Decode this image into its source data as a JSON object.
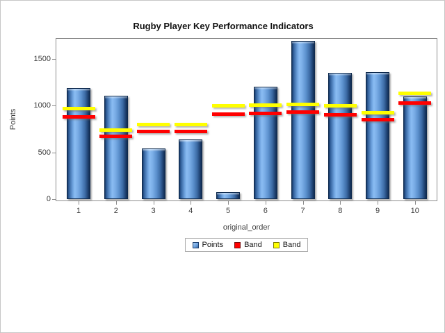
{
  "title": "Rugby Player Key Performance Indicators",
  "chart_data": {
    "type": "bar",
    "title": "Rugby Player Key Performance Indicators",
    "xlabel": "original_order",
    "ylabel": "Points",
    "categories": [
      "1",
      "2",
      "3",
      "4",
      "5",
      "6",
      "7",
      "8",
      "9",
      "10"
    ],
    "series": [
      {
        "name": "Points",
        "type": "bar",
        "color": "#6ea3df",
        "values": [
          1190,
          1105,
          545,
          635,
          75,
          1205,
          1690,
          1350,
          1360,
          1100
        ]
      },
      {
        "name": "Band",
        "type": "band",
        "color": "#ff0000",
        "values": [
          880,
          675,
          725,
          725,
          910,
          920,
          930,
          905,
          850,
          1025
        ]
      },
      {
        "name": "Band",
        "type": "band",
        "color": "#ffff00",
        "values": [
          970,
          740,
          795,
          795,
          1000,
          1005,
          1015,
          995,
          925,
          1135
        ]
      }
    ],
    "ylim": [
      0,
      1700
    ],
    "yticks": [
      0,
      500,
      1000,
      1500
    ],
    "grid": false,
    "legend_position": "bottom"
  },
  "legend": {
    "items": [
      {
        "label": "Points",
        "swatch": "points"
      },
      {
        "label": "Band",
        "swatch": "red"
      },
      {
        "label": "Band",
        "swatch": "yellow"
      }
    ]
  },
  "colors": {
    "bar": "#6ea3df",
    "band_red": "#ff0000",
    "band_yellow": "#ffff00",
    "plot_border": "#8c8c8c"
  }
}
